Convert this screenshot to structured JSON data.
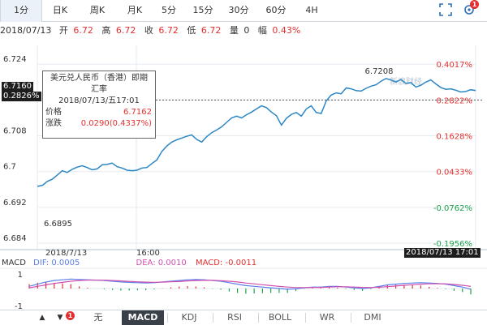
{
  "tabs": [
    "1分",
    "日K",
    "周K",
    "月K",
    "5分",
    "15分",
    "30分",
    "60分",
    "4H"
  ],
  "active_tab": "1分",
  "toolbar": {
    "badge": "1"
  },
  "info": {
    "date": "2018/07/13",
    "open_label": "开",
    "open": "6.72",
    "high_label": "高",
    "high": "6.72",
    "close_label": "收",
    "close": "6.72",
    "low_label": "低",
    "low": "6.72",
    "volume_label": "量",
    "volume": "0",
    "amp_label": "幅",
    "amp": "0.43%"
  },
  "chart_data": {
    "type": "line",
    "x_start": "2018/7/13",
    "x_mid_label": "16:00",
    "y_ticks": [
      "6.724",
      "6.716",
      "6.708",
      "6.7",
      "6.692",
      "6.684"
    ],
    "y_tick_values": [
      6.724,
      6.716,
      6.708,
      6.7,
      6.692,
      6.684
    ],
    "pct_ticks": [
      "0.4017%",
      "0.2822%",
      "0.1628%",
      "0.0433%",
      "-0.0762%",
      "-0.1956%"
    ],
    "ylim": [
      6.684,
      6.7264
    ],
    "values": [
      6.6967,
      6.6969,
      6.6978,
      6.6983,
      6.6992,
      6.7002,
      6.6998,
      6.7005,
      6.701,
      6.7013,
      6.7009,
      6.7004,
      6.7006,
      6.7015,
      6.7016,
      6.7019,
      6.7011,
      6.7008,
      6.7003,
      6.7002,
      6.7003,
      6.7008,
      6.7009,
      6.7018,
      6.7026,
      6.7045,
      6.7057,
      6.7066,
      6.7071,
      6.7075,
      6.7079,
      6.7082,
      6.7072,
      6.7066,
      6.7078,
      6.7087,
      6.7093,
      6.71,
      6.711,
      6.712,
      6.7124,
      6.712,
      6.7127,
      6.7133,
      6.714,
      6.7147,
      6.7143,
      6.7133,
      6.7125,
      6.7104,
      6.7119,
      6.7128,
      6.7132,
      6.7124,
      6.714,
      6.7147,
      6.7132,
      6.713,
      6.7158,
      6.7171,
      6.7176,
      6.7174,
      6.7187,
      6.7185,
      6.7181,
      6.718,
      6.7186,
      6.7191,
      6.7194,
      6.7202,
      6.7208,
      6.7205,
      6.72,
      6.7206,
      6.7197,
      6.7199,
      6.7189,
      6.7193,
      6.72,
      6.7205,
      6.7196,
      6.7188,
      6.7184,
      6.7185,
      6.7182,
      6.7178,
      6.7179,
      6.7183,
      6.7181
    ],
    "max_label": "6.7208",
    "min_label": "6.6895",
    "ref_value": 6.716
  },
  "crosshair": {
    "price": "6.7160",
    "pct": "0.2826%",
    "time": "2018/07/13 17:01"
  },
  "tooltip": {
    "title": "美元兑人民币（香港）即期汇率",
    "time": "2018/07/13/五17:01",
    "price_label": "价格",
    "price": "6.7162",
    "change_label": "涨跌",
    "change": "0.0290(0.4337%)"
  },
  "watermark": "新浪财经",
  "macd": {
    "label": "MACD",
    "dif": "DIF: 0.0005",
    "dea": "DEA: 0.0010",
    "macd": "MACD: -0.0011",
    "y_ticks": [
      "1",
      "-1"
    ],
    "dif_values": [
      0.15,
      0.3,
      0.45,
      0.55,
      0.6,
      0.65,
      0.62,
      0.6,
      0.58,
      0.55,
      0.5,
      0.45,
      0.42,
      0.4,
      0.38,
      0.4,
      0.45,
      0.5,
      0.55,
      0.6,
      0.62,
      0.6,
      0.55,
      0.5,
      0.4,
      0.3,
      0.2,
      0.15,
      0.1,
      0.05,
      0.0,
      -0.05,
      -0.02,
      0.05,
      0.1,
      0.1,
      0.15,
      0.15,
      0.1,
      0.05,
      0.0,
      0.05,
      0.15,
      0.25,
      0.3,
      0.35,
      0.38,
      0.4,
      0.38,
      0.35,
      0.3,
      0.2,
      0.1,
      -0.05
    ],
    "dea_values": [
      0.05,
      0.15,
      0.25,
      0.35,
      0.42,
      0.5,
      0.55,
      0.57,
      0.58,
      0.57,
      0.55,
      0.52,
      0.49,
      0.46,
      0.44,
      0.43,
      0.44,
      0.46,
      0.48,
      0.52,
      0.55,
      0.56,
      0.56,
      0.54,
      0.5,
      0.45,
      0.38,
      0.32,
      0.26,
      0.2,
      0.15,
      0.1,
      0.07,
      0.06,
      0.07,
      0.08,
      0.1,
      0.12,
      0.12,
      0.1,
      0.08,
      0.07,
      0.09,
      0.13,
      0.17,
      0.22,
      0.26,
      0.3,
      0.32,
      0.33,
      0.32,
      0.28,
      0.22,
      0.15
    ],
    "hist_values": [
      0.3,
      0.4,
      0.45,
      0.4,
      0.35,
      0.3,
      0.15,
      0.06,
      0.0,
      -0.05,
      -0.1,
      -0.14,
      -0.14,
      -0.12,
      -0.12,
      -0.06,
      0.02,
      0.08,
      0.14,
      0.16,
      0.14,
      0.08,
      -0.02,
      -0.08,
      -0.2,
      -0.3,
      -0.36,
      -0.34,
      -0.32,
      -0.3,
      -0.3,
      -0.3,
      -0.18,
      -0.02,
      0.06,
      0.04,
      0.1,
      0.06,
      -0.04,
      -0.1,
      -0.16,
      -0.04,
      0.12,
      0.24,
      0.26,
      0.26,
      0.24,
      0.2,
      0.12,
      0.04,
      -0.04,
      -0.16,
      -0.24,
      -0.4
    ]
  },
  "bottom_tabs": [
    "无",
    "MACD",
    "KDJ",
    "RSI",
    "BOLL",
    "WR",
    "DMI"
  ],
  "bottom_active": "MACD",
  "bottom_badge": "1",
  "colors": {
    "price_line": "#2b86c5",
    "up": "#e3302f",
    "down": "#1aa34a",
    "dif": "#5b7fe8",
    "dea": "#d24fb0"
  }
}
